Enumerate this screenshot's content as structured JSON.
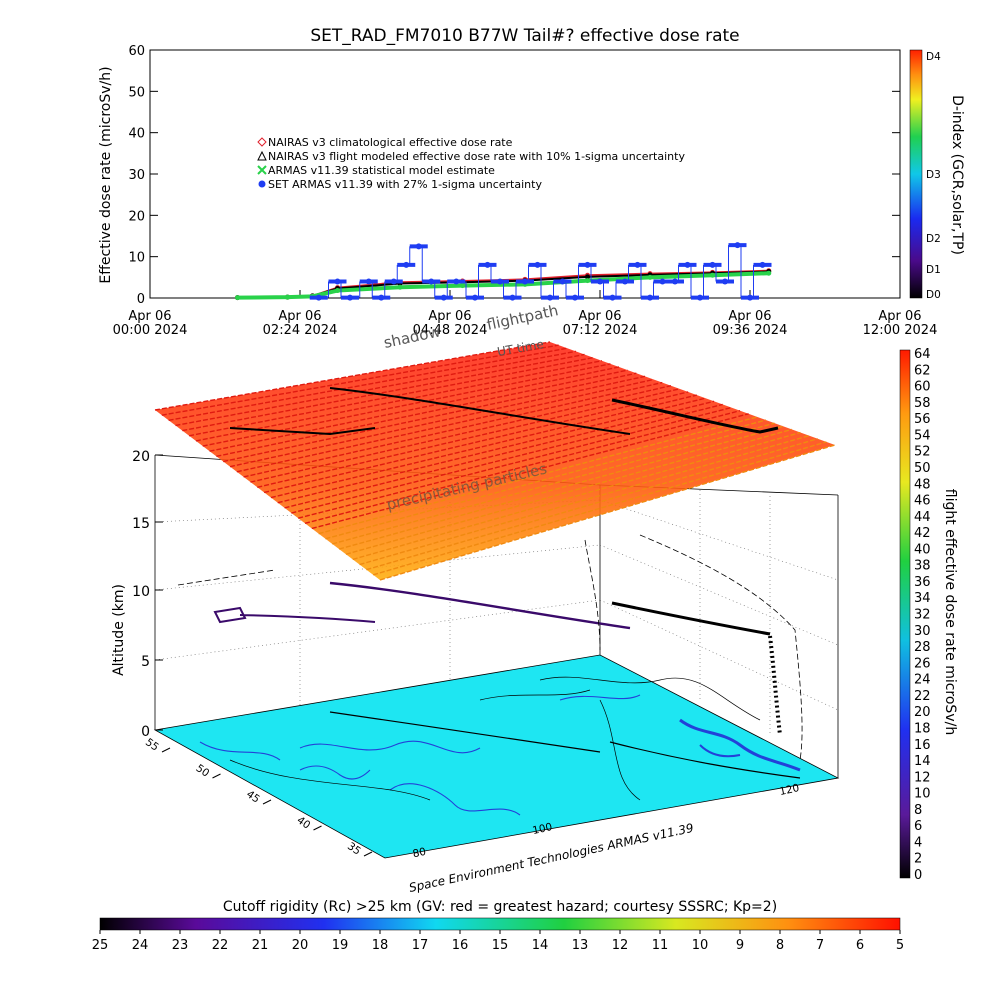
{
  "colors": {
    "climatological": "#e0202c",
    "modeled": "#000000",
    "armas_model": "#29d24a",
    "set_armas": "#1f3df2",
    "ocean": "#1ee6f2",
    "land_contour": "#2341d8"
  },
  "chart_data": [
    {
      "type": "scatter",
      "title": "SET_RAD_FM7010  B77W Tail#? effective dose rate",
      "ylabel": "Effective dose rate (microSv/h)",
      "ylim": [
        0,
        60
      ],
      "y_ticks": [
        "0",
        "10",
        "20",
        "30",
        "40",
        "50",
        "60"
      ],
      "x_ticks": [
        {
          "l1": "Apr 06",
          "l2": "00:00 2024"
        },
        {
          "l1": "Apr 06",
          "l2": "02:24 2024"
        },
        {
          "l1": "Apr 06",
          "l2": "04:48 2024"
        },
        {
          "l1": "Apr 06",
          "l2": "07:12 2024"
        },
        {
          "l1": "Apr 06",
          "l2": "09:36 2024"
        },
        {
          "l1": "Apr 06",
          "l2": "12:00 2024"
        }
      ],
      "xlim_hours": [
        0,
        12
      ],
      "legend": [
        {
          "symbol": "diamond",
          "color": "#e0202c",
          "label": "NAIRAS v3 climatological effective dose rate"
        },
        {
          "symbol": "triangle",
          "color": "#000000",
          "label": "NAIRAS v3 flight modeled effective dose rate with 10% 1-sigma uncertainty"
        },
        {
          "symbol": "cross",
          "color": "#29d24a",
          "label": "ARMAS v11.39 statistical model estimate"
        },
        {
          "symbol": "dot",
          "color": "#1f3df2",
          "label": "SET ARMAS v11.39 with 27% 1-sigma uncertainty"
        }
      ],
      "series": [
        {
          "name": "NAIRAS v3 climatological effective dose rate",
          "x": [
            1.4,
            2.2,
            2.6,
            3.0,
            4.0,
            5.0,
            6.0,
            7.0,
            8.0,
            9.0,
            9.9
          ],
          "values": [
            0.1,
            0.2,
            0.5,
            2.5,
            3.8,
            4.1,
            4.5,
            5.5,
            5.9,
            6.2,
            6.6
          ]
        },
        {
          "name": "NAIRAS v3 flight modeled effective dose rate with 10% 1-sigma uncertainty",
          "x": [
            1.4,
            2.2,
            2.6,
            3.0,
            4.0,
            5.0,
            6.0,
            7.0,
            8.0,
            9.0,
            9.9
          ],
          "values": [
            0.1,
            0.2,
            0.5,
            2.3,
            3.5,
            3.8,
            4.2,
            5.1,
            5.6,
            6.0,
            6.4
          ]
        },
        {
          "name": "ARMAS v11.39 statistical model estimate",
          "x": [
            1.4,
            2.2,
            2.6,
            3.0,
            4.0,
            5.0,
            6.0,
            7.0,
            8.0,
            9.0,
            9.9
          ],
          "values": [
            0.1,
            0.2,
            0.4,
            1.8,
            2.6,
            3.0,
            3.3,
            4.2,
            5.0,
            5.5,
            6.0
          ]
        },
        {
          "name": "SET ARMAS v11.39 with 27% 1-sigma uncertainty",
          "x": [
            2.7,
            3.0,
            3.2,
            3.5,
            3.7,
            3.9,
            4.1,
            4.3,
            4.5,
            4.7,
            4.9,
            5.2,
            5.4,
            5.6,
            5.8,
            6.0,
            6.2,
            6.4,
            6.6,
            6.8,
            7.0,
            7.2,
            7.4,
            7.6,
            7.8,
            8.0,
            8.2,
            8.4,
            8.6,
            8.8,
            9.0,
            9.2,
            9.4,
            9.6,
            9.8
          ],
          "values": [
            0.1,
            4.0,
            0.1,
            4.0,
            0.1,
            4.0,
            8.0,
            12.5,
            4.0,
            0.1,
            4.0,
            0.1,
            8.0,
            4.0,
            0.1,
            4.0,
            8.0,
            0.1,
            4.0,
            0.1,
            8.0,
            4.0,
            0.1,
            4.0,
            8.0,
            0.1,
            4.0,
            4.0,
            8.0,
            0.1,
            8.0,
            4.0,
            12.8,
            0.1,
            8.0
          ]
        }
      ],
      "colorbar": {
        "label": "D-index (GCR,solar,TP)",
        "ticks": [
          "D0",
          "D1",
          "D2",
          "D3",
          "D4"
        ]
      }
    },
    {
      "type": "surface3d",
      "ylabel": "Altitude (km)",
      "z_ticks": [
        "0",
        "5",
        "10",
        "15",
        "20"
      ],
      "lat_ticks": [
        "55",
        "50",
        "45",
        "40",
        "35"
      ],
      "lon_ticks": [
        "80",
        "100",
        "120"
      ],
      "annotations": {
        "shadow": "shadow",
        "flightpath": "flightpath",
        "time": "UT time",
        "particles": "precipitating particles",
        "credit": "Space Environment Technologies ARMAS v11.39"
      },
      "colorbar_right": {
        "label": "flight effective dose rate microSv/h",
        "ticks": [
          "0",
          "2",
          "4",
          "6",
          "8",
          "10",
          "12",
          "14",
          "16",
          "18",
          "20",
          "22",
          "24",
          "26",
          "28",
          "30",
          "32",
          "34",
          "36",
          "38",
          "40",
          "42",
          "44",
          "46",
          "48",
          "50",
          "52",
          "54",
          "56",
          "58",
          "60",
          "62",
          "64"
        ]
      },
      "colorbar_bottom": {
        "label": "Cutoff rigidity (Rc) >25 km (GV: red = greatest hazard; courtesy SSSRC; Kp=2)",
        "ticks": [
          "25",
          "24",
          "23",
          "22",
          "21",
          "20",
          "19",
          "18",
          "17",
          "16",
          "15",
          "14",
          "13",
          "12",
          "11",
          "10",
          "9",
          "8",
          "7",
          "6",
          "5"
        ]
      }
    }
  ]
}
